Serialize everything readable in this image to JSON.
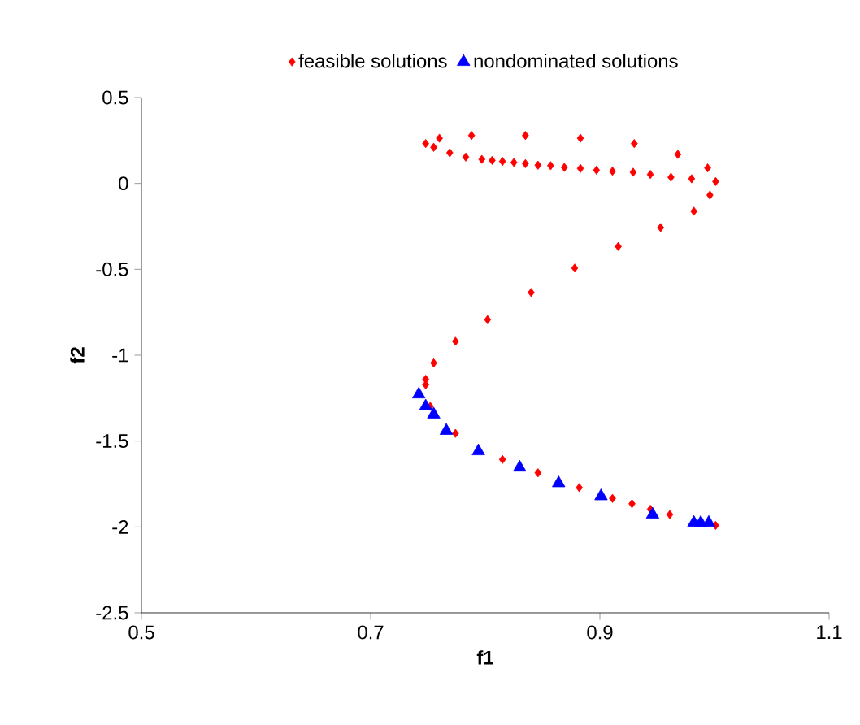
{
  "chart_data": {
    "type": "scatter",
    "xlabel": "f1",
    "ylabel": "f2",
    "xlim": [
      0.5,
      1.1
    ],
    "ylim": [
      -2.5,
      0.5
    ],
    "xticks": [
      0.5,
      0.7,
      0.9,
      1.1
    ],
    "yticks": [
      -2.5,
      -2,
      -1.5,
      -1,
      -0.5,
      0,
      0.5
    ],
    "legend": "top",
    "grid": false,
    "series": [
      {
        "name": "feasible solutions",
        "color": "#ff0000",
        "marker": "diamond",
        "x": [
          0.98,
          0.962,
          0.944,
          0.929,
          0.911,
          0.897,
          0.883,
          0.869,
          0.857,
          0.846,
          0.835,
          0.825,
          0.815,
          0.806,
          0.797,
          0.783,
          0.769,
          0.755,
          0.748,
          0.76,
          0.788,
          0.835,
          0.883,
          0.93,
          0.968,
          0.994,
          1.001,
          0.996,
          0.982,
          0.953,
          0.916,
          0.878,
          0.84,
          0.802,
          0.774,
          0.755,
          0.748,
          0.748,
          0.752,
          0.774,
          0.815,
          0.846,
          0.882,
          0.911,
          0.928,
          0.944,
          0.961,
          1.001
        ],
        "values": [
          0.027,
          0.036,
          0.052,
          0.065,
          0.071,
          0.077,
          0.087,
          0.093,
          0.103,
          0.106,
          0.115,
          0.122,
          0.128,
          0.134,
          0.14,
          0.153,
          0.178,
          0.21,
          0.232,
          0.263,
          0.279,
          0.279,
          0.263,
          0.232,
          0.169,
          0.09,
          0.011,
          -0.068,
          -0.162,
          -0.257,
          -0.367,
          -0.493,
          -0.635,
          -0.793,
          -0.919,
          -1.045,
          -1.172,
          -1.14,
          -1.298,
          -1.455,
          -1.607,
          -1.685,
          -1.771,
          -1.834,
          -1.865,
          -1.897,
          -1.928,
          -1.991
        ]
      },
      {
        "name": "nondominated solutions",
        "color": "#0000ff",
        "marker": "triangle",
        "x": [
          0.742,
          0.748,
          0.755,
          0.766,
          0.794,
          0.83,
          0.864,
          0.901,
          0.946,
          0.982,
          0.988,
          0.995
        ],
        "values": [
          -1.228,
          -1.298,
          -1.345,
          -1.44,
          -1.559,
          -1.654,
          -1.745,
          -1.821,
          -1.928,
          -1.976,
          -1.976,
          -1.976
        ]
      }
    ]
  }
}
